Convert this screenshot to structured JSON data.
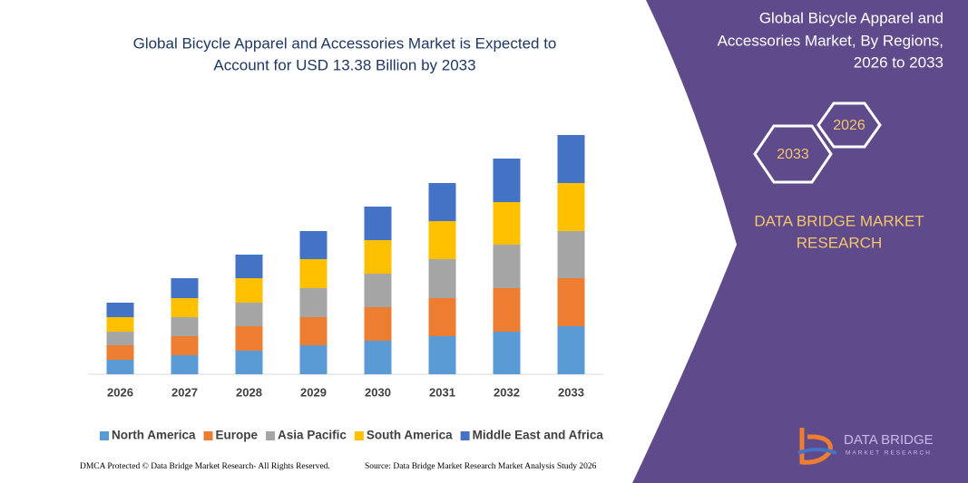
{
  "chart_data": {
    "type": "stacked_bar",
    "title": [
      "Global Bicycle Apparel and Accessories Market is Expected to",
      "Account for USD 13.38 Billion by 2033"
    ],
    "categories": [
      "2026",
      "2027",
      "2028",
      "2029",
      "2030",
      "2031",
      "2032",
      "2033"
    ],
    "series": [
      {
        "name": "North America",
        "color": "#5b9bd5",
        "values": [
          16,
          21,
          26,
          32,
          37,
          42,
          47,
          53
        ]
      },
      {
        "name": "Europe",
        "color": "#ed7d31",
        "values": [
          16,
          21,
          27,
          31,
          37,
          42,
          48,
          53
        ]
      },
      {
        "name": "Asia Pacific",
        "color": "#a5a5a5",
        "values": [
          15,
          21,
          26,
          32,
          37,
          43,
          48,
          52
        ]
      },
      {
        "name": "South America",
        "color": "#ffc000",
        "values": [
          16,
          21,
          27,
          32,
          37,
          42,
          47,
          53
        ]
      },
      {
        "name": "Middle East and Africa",
        "color": "#4472c4",
        "values": [
          16,
          22,
          26,
          31,
          37,
          42,
          48,
          53
        ]
      }
    ],
    "ylim": [
      0,
      280
    ]
  },
  "panel": {
    "title": [
      "Global Bicycle Apparel and",
      "Accessories Market, By Regions,",
      "2026 to 2033"
    ],
    "hex_start": "2026",
    "hex_end": "2033",
    "brand": [
      "DATA BRIDGE MARKET",
      "RESEARCH"
    ],
    "logo_name": "DATA BRIDGE",
    "logo_sub": "MARKET RESEARCH"
  },
  "footer": {
    "left": "DMCA Protected © Data Bridge Market Research- All Rights Reserved.",
    "right": "Source: Data Bridge Market Research Market Analysis Study 2026"
  }
}
